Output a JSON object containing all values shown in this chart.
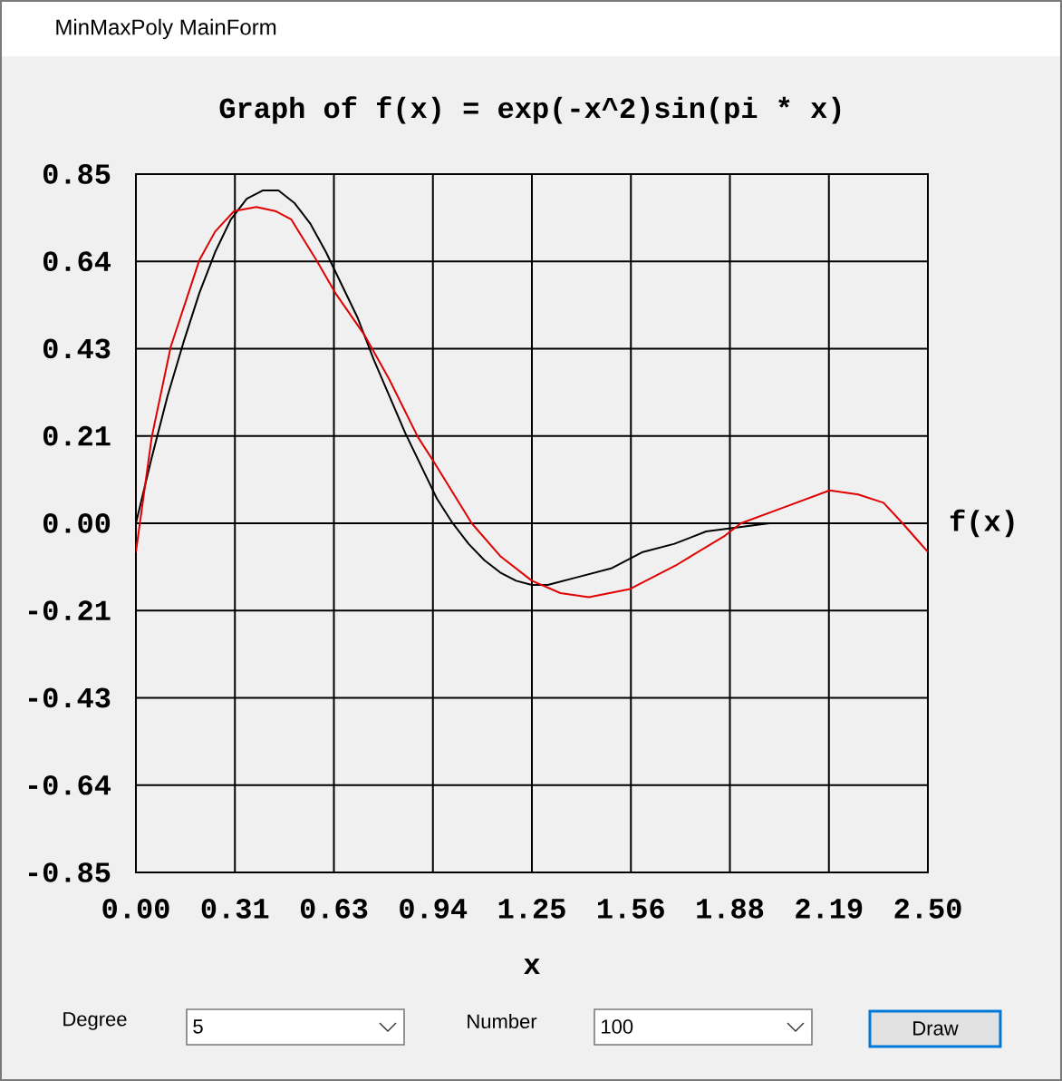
{
  "chart_data": {
    "type": "line",
    "title": "Graph of f(x) = exp(-x^2)sin(pi * x)",
    "xlabel": "x",
    "ylabel": "f(x)",
    "annotations": [
      "MinMaxPoly MainForm",
      "Degree",
      "5",
      "Number",
      "100",
      "Draw"
    ],
    "xlim": [
      0,
      2.5
    ],
    "ylim": [
      -0.85,
      0.85
    ],
    "xticks": [
      {
        "value": 0,
        "label": "0.00"
      },
      {
        "value": 0.3125,
        "label": "0.31"
      },
      {
        "value": 0.625,
        "label": "0.63"
      },
      {
        "value": 0.9375,
        "label": "0.94"
      },
      1.25,
      {
        "value": 1.5625,
        "label": "1.56"
      },
      {
        "value": 1.875,
        "label": "1.88"
      },
      {
        "value": 2.1875,
        "label": "2.19"
      },
      {
        "value": 2.5,
        "label": "2.50"
      }
    ],
    "yticks": [
      -0.85,
      {
        "value": -0.6375,
        "label": "-0.64"
      },
      {
        "value": -0.425,
        "label": "-0.43"
      },
      {
        "value": -0.2125,
        "label": "-0.21"
      },
      {
        "value": 0,
        "label": "0.00"
      },
      {
        "value": 0.2125,
        "label": "0.21"
      },
      {
        "value": 0.425,
        "label": "0.43"
      },
      {
        "value": 0.6375,
        "label": "0.64"
      },
      0.85
    ],
    "grid": true,
    "marker": "none",
    "line_style": "solid",
    "series": [
      {
        "color": "#000000",
        "x": [
          0,
          0.05,
          0.1,
          0.15,
          0.2,
          0.25,
          0.3,
          0.35,
          0.4,
          0.45,
          0.5,
          0.55,
          0.6,
          0.65,
          0.7,
          0.75,
          0.8,
          0.85,
          0.9,
          0.95,
          1.0,
          1.05,
          1.1,
          1.15,
          1.2,
          1.25,
          1.3,
          1.4,
          1.5,
          1.6,
          1.7,
          1.8,
          1.9,
          2.0,
          2.1,
          2.2,
          2.3,
          2.4,
          2.5
        ],
        "values": [
          0.0,
          0.16,
          0.31,
          0.44,
          0.56,
          0.66,
          0.74,
          0.79,
          0.81,
          0.81,
          0.78,
          0.73,
          0.66,
          0.58,
          0.5,
          0.4,
          0.31,
          0.22,
          0.14,
          0.06,
          0.0,
          -0.05,
          -0.09,
          -0.12,
          -0.14,
          -0.15,
          -0.15,
          -0.13,
          -0.11,
          -0.07,
          -0.05,
          -0.02,
          -0.01,
          0.0,
          0.0,
          0.0,
          0.0,
          0.0,
          0.0
        ]
      },
      {
        "color": "#e00000",
        "x": [
          0,
          0.05,
          0.11,
          0.2,
          0.25,
          0.31,
          0.38,
          0.44,
          0.49,
          0.57,
          0.63,
          0.72,
          0.8,
          0.89,
          0.94,
          1.06,
          1.15,
          1.25,
          1.34,
          1.43,
          1.56,
          1.71,
          1.86,
          1.91,
          2.05,
          2.19,
          2.28,
          2.36,
          2.42,
          2.5
        ],
        "values": [
          -0.07,
          0.21,
          0.43,
          0.64,
          0.71,
          0.76,
          0.77,
          0.76,
          0.74,
          0.64,
          0.56,
          0.46,
          0.35,
          0.21,
          0.15,
          0.0,
          -0.08,
          -0.14,
          -0.17,
          -0.18,
          -0.16,
          -0.1,
          -0.03,
          0.0,
          0.04,
          0.08,
          0.07,
          0.05,
          0.0,
          -0.07
        ]
      }
    ]
  }
}
